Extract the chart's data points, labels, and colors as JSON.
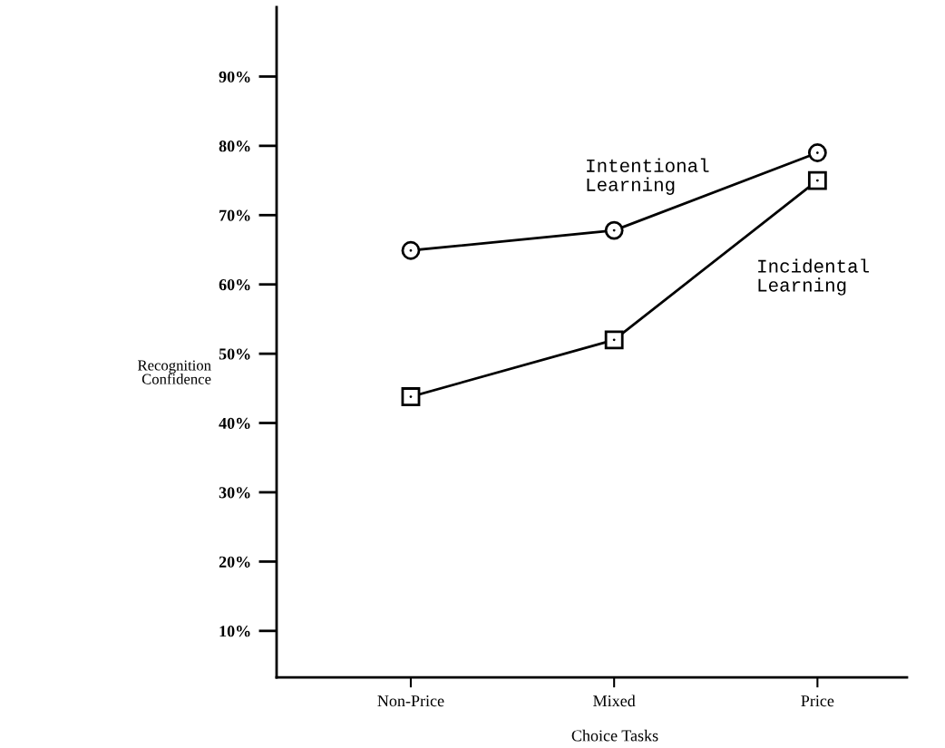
{
  "chart_data": {
    "type": "line",
    "xlabel": "Choice Tasks",
    "ylabel": "Recognition\nConfidence",
    "categories": [
      "Non-Price",
      "Mixed",
      "Price"
    ],
    "series": [
      {
        "name": "Intentional\nLearning",
        "color": "#000000",
        "marker": "circle",
        "values": [
          64.9,
          67.8,
          79
        ]
      },
      {
        "name": "Incidental\nLearning",
        "color": "#000000",
        "marker": "square",
        "values": [
          43.8,
          52,
          75
        ]
      }
    ],
    "ylim": [
      3.3,
      100
    ],
    "yticks": [
      {
        "value": 10,
        "label": "10%"
      },
      {
        "value": 20,
        "label": "20%"
      },
      {
        "value": 30,
        "label": "30%"
      },
      {
        "value": 40,
        "label": "40%"
      },
      {
        "value": 50,
        "label": "50%"
      },
      {
        "value": 60,
        "label": "60%"
      },
      {
        "value": 70,
        "label": "70%"
      },
      {
        "value": 80,
        "label": "80%"
      },
      {
        "value": 90,
        "label": "90%"
      }
    ],
    "grid": false,
    "legend": false,
    "line_style": "solid"
  }
}
